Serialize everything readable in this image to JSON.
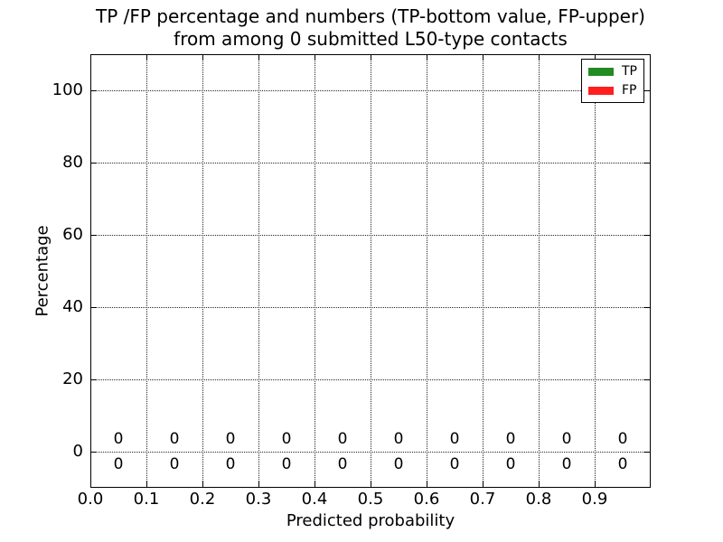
{
  "chart_data": {
    "type": "bar",
    "title_line1": "TP /FP percentage and numbers (TP-bottom value, FP-upper)",
    "title_line2": "from among 0 submitted L50-type contacts",
    "xlabel": "Predicted probability",
    "ylabel": "Percentage",
    "xlim": [
      0.0,
      1.0
    ],
    "ylim": [
      -10,
      110
    ],
    "x_tick_values": [
      0.0,
      0.1,
      0.2,
      0.3,
      0.4,
      0.5,
      0.6,
      0.7,
      0.8,
      0.9
    ],
    "x_tick_labels": [
      "0.0",
      "0.1",
      "0.2",
      "0.3",
      "0.4",
      "0.5",
      "0.6",
      "0.7",
      "0.8",
      "0.9"
    ],
    "y_tick_values": [
      0,
      20,
      40,
      60,
      80,
      100
    ],
    "y_tick_labels": [
      "0",
      "20",
      "40",
      "60",
      "80",
      "100"
    ],
    "grid": true,
    "grid_linestyle": "dotted",
    "categories": [
      0.05,
      0.15,
      0.25,
      0.35,
      0.45,
      0.55,
      0.65,
      0.75,
      0.85,
      0.95
    ],
    "series": [
      {
        "name": "TP",
        "color": "#228B22",
        "values": [
          0,
          0,
          0,
          0,
          0,
          0,
          0,
          0,
          0,
          0
        ]
      },
      {
        "name": "FP",
        "color": "#ff1f1f",
        "values": [
          0,
          0,
          0,
          0,
          0,
          0,
          0,
          0,
          0,
          0
        ]
      }
    ],
    "count_labels": {
      "fp_row": {
        "y": 3.5,
        "values": [
          "0",
          "0",
          "0",
          "0",
          "0",
          "0",
          "0",
          "0",
          "0",
          "0"
        ]
      },
      "tp_row": {
        "y": -3.5,
        "values": [
          "0",
          "0",
          "0",
          "0",
          "0",
          "0",
          "0",
          "0",
          "0",
          "0"
        ]
      }
    },
    "legend": {
      "position": "upper right",
      "entries": [
        {
          "label": "TP",
          "color": "#228B22"
        },
        {
          "label": "FP",
          "color": "#ff1f1f"
        }
      ]
    }
  }
}
